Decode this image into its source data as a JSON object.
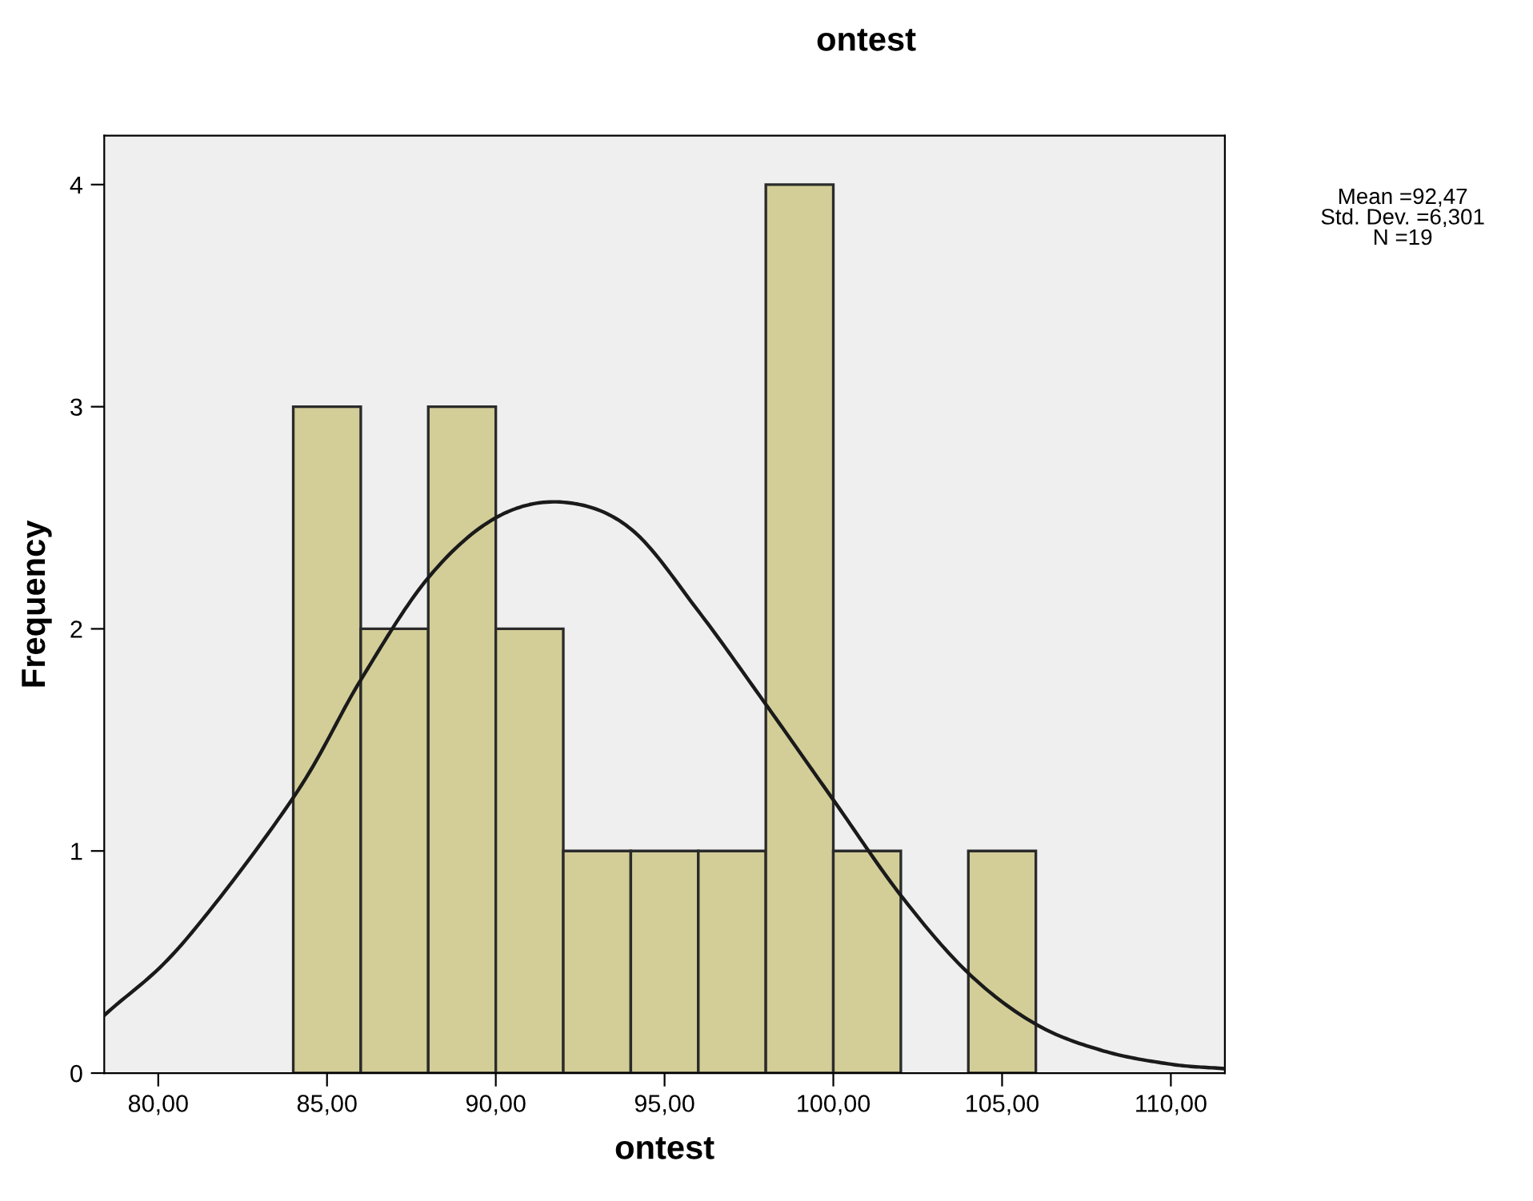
{
  "chart_data": {
    "type": "histogram",
    "title": "ontest",
    "xlabel": "ontest",
    "ylabel": "Frequency",
    "bins": [
      84,
      86,
      88,
      90,
      92,
      94,
      96,
      98,
      100,
      102,
      104,
      106
    ],
    "values": [
      3,
      2,
      3,
      2,
      1,
      1,
      1,
      4,
      1,
      0,
      1
    ],
    "color": "#d3cd98",
    "series": [
      {
        "type": "line",
        "color": "#1a1a1a",
        "x": [
          78.4,
          80.7,
          84,
          86,
          88,
          90,
          92,
          94,
          96,
          98,
          100,
          102,
          104,
          106,
          108,
          110,
          111.6
        ],
        "values": [
          0.26,
          0.58,
          1.24,
          1.77,
          2.23,
          2.5,
          2.57,
          2.45,
          2.08,
          1.66,
          1.23,
          0.8,
          0.45,
          0.22,
          0.1,
          0.04,
          0.02
        ]
      }
    ],
    "xlim": [
      78.4,
      111.6
    ],
    "ylim": [
      0,
      4.22
    ],
    "xticks": [
      {
        "value": 80,
        "label": "80,00"
      },
      {
        "value": 85,
        "label": "85,00"
      },
      {
        "value": 90,
        "label": "90,00"
      },
      {
        "value": 95,
        "label": "95,00"
      },
      {
        "value": 100,
        "label": "100,00"
      },
      {
        "value": 105,
        "label": "105,00"
      },
      {
        "value": 110,
        "label": "110,00"
      }
    ],
    "yticks": [
      0,
      1,
      2,
      3,
      4
    ],
    "annotations": [
      "Mean =92,47",
      "Std. Dev. =6,301",
      "N =19"
    ],
    "grid": false,
    "legend": false
  }
}
